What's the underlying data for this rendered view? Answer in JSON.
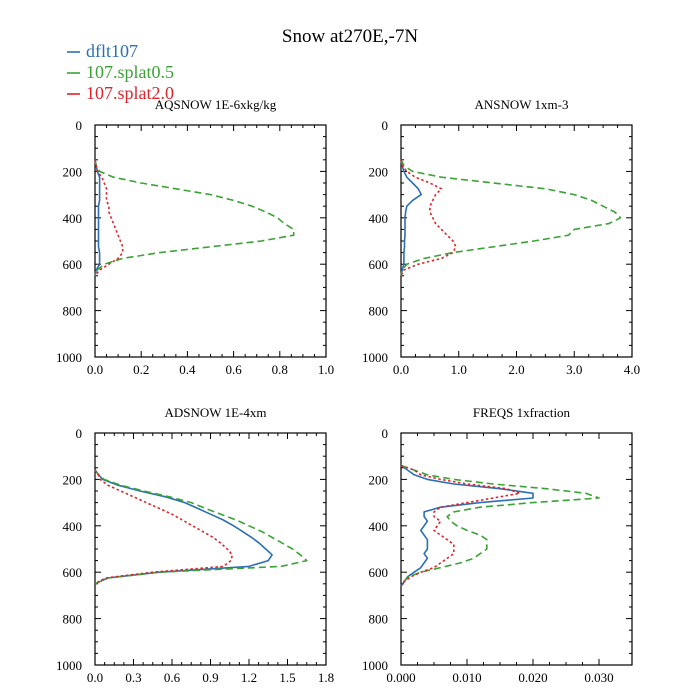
{
  "title": "Snow at270E,-7N",
  "legend": [
    {
      "label": "dflt107",
      "color": "#2b6fb4",
      "dash": "solid"
    },
    {
      "label": "107.splat0.5",
      "color": "#3aa335",
      "dash": "dashed"
    },
    {
      "label": "107.splat2.0",
      "color": "#e0242b",
      "dash": "dotted"
    }
  ],
  "chart_data": [
    {
      "type": "line",
      "title": "AQSNOW  1E-6xkg/kg",
      "xlim": [
        0,
        1.0
      ],
      "ylim": [
        1000,
        0
      ],
      "xticks": [
        0,
        0.2,
        0.4,
        0.6,
        0.8,
        1.0
      ],
      "xtick_labels": [
        "0.0",
        "0.2",
        "0.4",
        "0.6",
        "0.8",
        "1.0"
      ],
      "yticks": [
        0,
        200,
        400,
        600,
        800,
        1000
      ],
      "ytick_labels": [
        "0",
        "200",
        "400",
        "600",
        "800",
        "1000"
      ],
      "y": [
        150,
        175,
        200,
        225,
        250,
        275,
        300,
        325,
        350,
        375,
        400,
        425,
        450,
        475,
        500,
        525,
        550,
        575,
        600,
        625,
        650
      ],
      "series": [
        {
          "name": "dflt107",
          "values": [
            0,
            0.005,
            0.01,
            0.02,
            0.02,
            0.02,
            0.02,
            0.02,
            0.015,
            0.015,
            0.015,
            0.015,
            0.015,
            0.015,
            0.015,
            0.015,
            0.02,
            0.02,
            0.02,
            0.005,
            0
          ]
        },
        {
          "name": "107.splat0.5",
          "values": [
            0,
            0.005,
            0.02,
            0.08,
            0.2,
            0.35,
            0.5,
            0.6,
            0.68,
            0.74,
            0.79,
            0.82,
            0.86,
            0.86,
            0.72,
            0.5,
            0.28,
            0.12,
            0.04,
            0.01,
            0
          ]
        },
        {
          "name": "107.splat2.0",
          "values": [
            0,
            0.005,
            0.01,
            0.03,
            0.04,
            0.05,
            0.05,
            0.05,
            0.06,
            0.06,
            0.07,
            0.08,
            0.09,
            0.1,
            0.11,
            0.12,
            0.12,
            0.1,
            0.06,
            0.02,
            0
          ]
        }
      ]
    },
    {
      "type": "line",
      "title": "ANSNOW  1xm-3",
      "xlim": [
        0,
        4.0
      ],
      "ylim": [
        1000,
        0
      ],
      "xticks": [
        0,
        1,
        2,
        3,
        4
      ],
      "xtick_labels": [
        "0.0",
        "1.0",
        "2.0",
        "3.0",
        "4.0"
      ],
      "yticks": [
        0,
        200,
        400,
        600,
        800,
        1000
      ],
      "ytick_labels": [
        "0",
        "200",
        "400",
        "600",
        "800",
        "1000"
      ],
      "y": [
        150,
        175,
        200,
        225,
        250,
        275,
        300,
        325,
        350,
        375,
        400,
        425,
        450,
        475,
        500,
        525,
        550,
        575,
        600,
        625,
        650
      ],
      "series": [
        {
          "name": "dflt107",
          "values": [
            0,
            0.02,
            0.05,
            0.1,
            0.2,
            0.3,
            0.35,
            0.2,
            0.1,
            0.08,
            0.07,
            0.07,
            0.07,
            0.07,
            0.06,
            0.06,
            0.05,
            0.05,
            0.05,
            0.02,
            0
          ]
        },
        {
          "name": "107.splat0.5",
          "values": [
            0,
            0.05,
            0.2,
            0.7,
            1.6,
            2.5,
            3.0,
            3.3,
            3.5,
            3.7,
            3.8,
            3.6,
            3.0,
            2.9,
            2.3,
            1.6,
            0.9,
            0.4,
            0.1,
            0.02,
            0
          ]
        },
        {
          "name": "107.splat2.0",
          "values": [
            0,
            0.02,
            0.1,
            0.25,
            0.5,
            0.7,
            0.6,
            0.55,
            0.5,
            0.5,
            0.55,
            0.6,
            0.7,
            0.8,
            0.9,
            0.95,
            0.9,
            0.7,
            0.3,
            0.05,
            0
          ]
        }
      ]
    },
    {
      "type": "line",
      "title": "ADSNOW  1E-4xm",
      "xlim": [
        0,
        1.8
      ],
      "ylim": [
        1000,
        0
      ],
      "xticks": [
        0,
        0.3,
        0.6,
        0.9,
        1.2,
        1.5,
        1.8
      ],
      "xtick_labels": [
        "0.0",
        "0.3",
        "0.6",
        "0.9",
        "1.2",
        "1.5",
        "1.8"
      ],
      "yticks": [
        0,
        200,
        400,
        600,
        800,
        1000
      ],
      "ytick_labels": [
        "0",
        "200",
        "400",
        "600",
        "800",
        "1000"
      ],
      "y": [
        160,
        175,
        200,
        225,
        250,
        275,
        300,
        325,
        350,
        375,
        400,
        425,
        450,
        475,
        500,
        525,
        550,
        575,
        600,
        625,
        650
      ],
      "series": [
        {
          "name": "dflt107",
          "values": [
            0,
            0.02,
            0.06,
            0.18,
            0.35,
            0.55,
            0.7,
            0.8,
            0.9,
            1.0,
            1.08,
            1.15,
            1.22,
            1.28,
            1.33,
            1.38,
            1.35,
            1.2,
            0.5,
            0.1,
            0
          ]
        },
        {
          "name": "107.splat0.5",
          "values": [
            0,
            0.02,
            0.07,
            0.2,
            0.38,
            0.58,
            0.75,
            0.86,
            0.98,
            1.1,
            1.2,
            1.3,
            1.38,
            1.46,
            1.54,
            1.6,
            1.65,
            1.45,
            0.5,
            0.1,
            0
          ]
        },
        {
          "name": "107.splat2.0",
          "values": [
            0,
            0.02,
            0.04,
            0.1,
            0.2,
            0.3,
            0.4,
            0.5,
            0.6,
            0.68,
            0.76,
            0.84,
            0.92,
            0.98,
            1.03,
            1.07,
            1.06,
            1.0,
            0.45,
            0.08,
            0
          ]
        }
      ]
    },
    {
      "type": "line",
      "title": "FREQS  1xfraction",
      "xlim": [
        0,
        0.035
      ],
      "ylim": [
        1000,
        0
      ],
      "xticks": [
        0,
        0.01,
        0.02,
        0.03
      ],
      "xtick_labels": [
        "0.000",
        "0.010",
        "0.020",
        "0.030"
      ],
      "yticks": [
        0,
        200,
        400,
        600,
        800,
        1000
      ],
      "ytick_labels": [
        "0",
        "200",
        "400",
        "600",
        "800",
        "1000"
      ],
      "y": [
        140,
        160,
        180,
        200,
        220,
        240,
        260,
        280,
        300,
        320,
        340,
        360,
        380,
        400,
        420,
        440,
        460,
        480,
        500,
        520,
        540,
        560,
        580,
        600,
        620,
        640,
        660
      ],
      "series": [
        {
          "name": "dflt107",
          "values": [
            0,
            0.001,
            0.002,
            0.004,
            0.008,
            0.015,
            0.02,
            0.02,
            0.012,
            0.006,
            0.0035,
            0.0035,
            0.004,
            0.0035,
            0.003,
            0.0035,
            0.004,
            0.004,
            0.004,
            0.0035,
            0.004,
            0.0035,
            0.003,
            0.002,
            0.001,
            0.0005,
            0
          ]
        },
        {
          "name": "107.splat0.5",
          "values": [
            0,
            0.002,
            0.004,
            0.008,
            0.014,
            0.022,
            0.028,
            0.03,
            0.02,
            0.012,
            0.008,
            0.007,
            0.0075,
            0.0085,
            0.01,
            0.012,
            0.013,
            0.013,
            0.013,
            0.012,
            0.011,
            0.009,
            0.006,
            0.003,
            0.0012,
            0.0004,
            0
          ]
        },
        {
          "name": "107.splat2.0",
          "values": [
            0,
            0.002,
            0.003,
            0.006,
            0.01,
            0.016,
            0.018,
            0.014,
            0.01,
            0.006,
            0.005,
            0.005,
            0.006,
            0.0055,
            0.005,
            0.006,
            0.007,
            0.008,
            0.008,
            0.008,
            0.007,
            0.006,
            0.005,
            0.003,
            0.0015,
            0.0005,
            0
          ]
        }
      ]
    }
  ]
}
